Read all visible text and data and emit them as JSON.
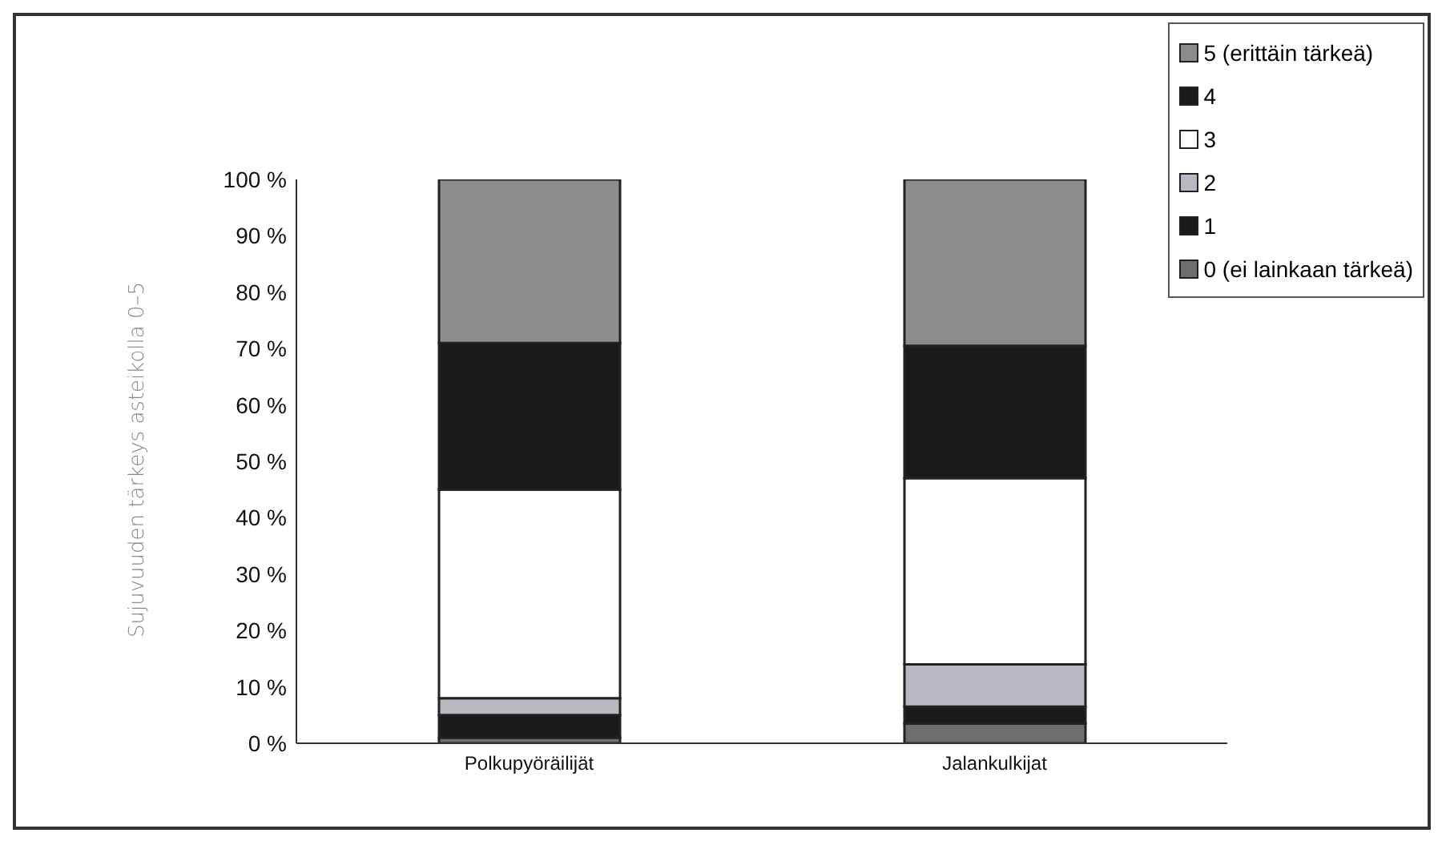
{
  "chart_data": {
    "type": "bar",
    "stacked": true,
    "ylabel": "Sujuvuuden tärkeys asteikolla 0–5",
    "categories": [
      "Polkupyöräilijät",
      "Jalankulkijat"
    ],
    "series": [
      {
        "name": "0 (ei lainkaan tärkeä)",
        "color": "#6e6e6e",
        "values": [
          1,
          3.5
        ]
      },
      {
        "name": "1",
        "color": "#1a1a1a",
        "values": [
          4,
          3
        ]
      },
      {
        "name": "2",
        "color": "#b8b8c0",
        "values": [
          3,
          7.5
        ]
      },
      {
        "name": "3",
        "color": "#ffffff",
        "values": [
          37,
          33
        ]
      },
      {
        "name": "4",
        "color": "#1a1a1a",
        "values": [
          26,
          23.5
        ]
      },
      {
        "name": "5 (erittäin tärkeä)",
        "color": "#8c8c8c",
        "values": [
          29,
          29.5
        ]
      }
    ],
    "ylim": [
      0,
      100
    ],
    "yticks": [
      {
        "value": 0,
        "label": "0 %"
      },
      {
        "value": 10,
        "label": "10 %"
      },
      {
        "value": 20,
        "label": "20 %"
      },
      {
        "value": 30,
        "label": "30 %"
      },
      {
        "value": 40,
        "label": "40 %"
      },
      {
        "value": 50,
        "label": "50 %"
      },
      {
        "value": 60,
        "label": "60 %"
      },
      {
        "value": 70,
        "label": "70 %"
      },
      {
        "value": 80,
        "label": "80 %"
      },
      {
        "value": 90,
        "label": "90 %"
      },
      {
        "value": 100,
        "label": "100 %"
      }
    ],
    "grid": false,
    "legend": "top right"
  }
}
